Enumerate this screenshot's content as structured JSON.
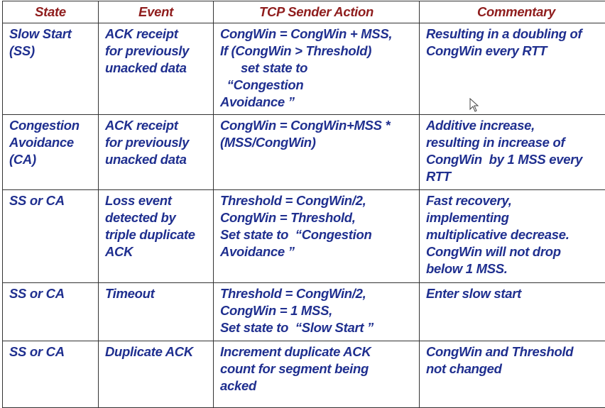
{
  "table": {
    "headers": [
      "State",
      "Event",
      "TCP Sender Action",
      "Commentary"
    ],
    "rows": [
      {
        "state": "Slow Start\n(SS)",
        "event": "ACK receipt\nfor previously\nunacked data",
        "action": "CongWin = CongWin + MSS,\nIf (CongWin > Threshold)\n      set state to\n  “Congestion\nAvoidance ”",
        "commentary": "Resulting in a doubling of\nCongWin every RTT"
      },
      {
        "state": "Congestion\nAvoidance\n(CA)",
        "event": "ACK receipt\nfor previously\nunacked data",
        "action": "CongWin = CongWin+MSS *\n(MSS/CongWin)",
        "commentary": "Additive increase,\nresulting in increase of\nCongWin  by 1 MSS every\nRTT"
      },
      {
        "state": "SS or CA",
        "event": "Loss event\ndetected by\ntriple duplicate\nACK",
        "action": "Threshold = CongWin/2,\nCongWin = Threshold,\nSet state to  “Congestion\nAvoidance ”",
        "commentary": "Fast recovery,\nimplementing\nmultiplicative decrease.\nCongWin will not drop\nbelow 1 MSS."
      },
      {
        "state": "SS or CA",
        "event": "Timeout",
        "action": "Threshold = CongWin/2,\nCongWin = 1 MSS,\nSet state to  “Slow Start ”",
        "commentary": "Enter slow start"
      },
      {
        "state": "SS or CA",
        "event": "Duplicate ACK",
        "action": "Increment duplicate ACK\ncount for segment being\nacked",
        "commentary": "CongWin and Threshold\nnot changed"
      }
    ]
  },
  "colors": {
    "header": "#8f1d1d",
    "body": "#1f2f8f"
  },
  "cursor_icon": "mouse-pointer-icon"
}
